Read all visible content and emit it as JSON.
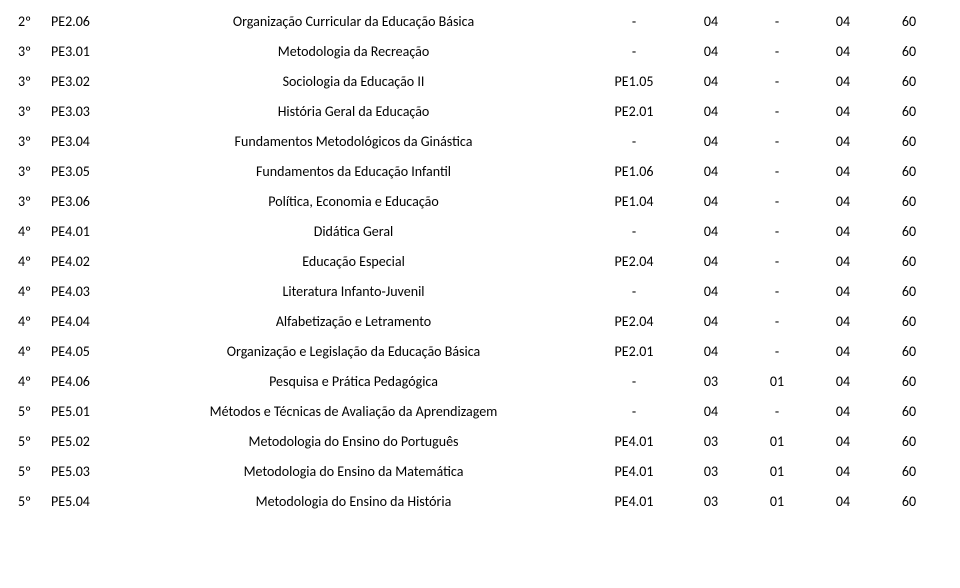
{
  "rows": [
    {
      "sem": "2º",
      "code": "PE2.06",
      "name": "Organização Curricular da Educação Básica",
      "pre": "-",
      "c1": "04",
      "c2": "-",
      "c3": "04",
      "c4": "60"
    },
    {
      "sem": "3º",
      "code": "PE3.01",
      "name": "Metodologia da Recreação",
      "pre": "-",
      "c1": "04",
      "c2": "-",
      "c3": "04",
      "c4": "60"
    },
    {
      "sem": "3º",
      "code": "PE3.02",
      "name": "Sociologia da Educação II",
      "pre": "PE1.05",
      "c1": "04",
      "c2": "-",
      "c3": "04",
      "c4": "60"
    },
    {
      "sem": "3º",
      "code": "PE3.03",
      "name": "História Geral da Educação",
      "pre": "PE2.01",
      "c1": "04",
      "c2": "-",
      "c3": "04",
      "c4": "60"
    },
    {
      "sem": "3º",
      "code": "PE3.04",
      "name": "Fundamentos Metodológicos da Ginástica",
      "pre": "-",
      "c1": "04",
      "c2": "-",
      "c3": "04",
      "c4": "60"
    },
    {
      "sem": "3º",
      "code": "PE3.05",
      "name": "Fundamentos da Educação Infantil",
      "pre": "PE1.06",
      "c1": "04",
      "c2": "-",
      "c3": "04",
      "c4": "60"
    },
    {
      "sem": "3º",
      "code": "PE3.06",
      "name": "Política, Economia e Educação",
      "pre": "PE1.04",
      "c1": "04",
      "c2": "-",
      "c3": "04",
      "c4": "60"
    },
    {
      "sem": "4º",
      "code": "PE4.01",
      "name": "Didática Geral",
      "pre": "-",
      "c1": "04",
      "c2": "-",
      "c3": "04",
      "c4": "60"
    },
    {
      "sem": "4º",
      "code": "PE4.02",
      "name": "Educação Especial",
      "pre": "PE2.04",
      "c1": "04",
      "c2": "-",
      "c3": "04",
      "c4": "60"
    },
    {
      "sem": "4º",
      "code": "PE4.03",
      "name": "Literatura Infanto-Juvenil",
      "pre": "-",
      "c1": "04",
      "c2": "-",
      "c3": "04",
      "c4": "60"
    },
    {
      "sem": "4º",
      "code": "PE4.04",
      "name": "Alfabetização e Letramento",
      "pre": "PE2.04",
      "c1": "04",
      "c2": "-",
      "c3": "04",
      "c4": "60"
    },
    {
      "sem": "4º",
      "code": "PE4.05",
      "name": "Organização e Legislação da Educação Básica",
      "pre": "PE2.01",
      "c1": "04",
      "c2": "-",
      "c3": "04",
      "c4": "60"
    },
    {
      "sem": "4º",
      "code": "PE4.06",
      "name": "Pesquisa e Prática Pedagógica",
      "pre": "-",
      "c1": "03",
      "c2": "01",
      "c3": "04",
      "c4": "60"
    },
    {
      "sem": "5º",
      "code": "PE5.01",
      "name": "Métodos e Técnicas de Avaliação da Aprendizagem",
      "pre": "-",
      "c1": "04",
      "c2": "-",
      "c3": "04",
      "c4": "60"
    },
    {
      "sem": "5º",
      "code": "PE5.02",
      "name": "Metodologia do Ensino do Português",
      "pre": "PE4.01",
      "c1": "03",
      "c2": "01",
      "c3": "04",
      "c4": "60"
    },
    {
      "sem": "5º",
      "code": "PE5.03",
      "name": "Metodologia do Ensino da Matemática",
      "pre": "PE4.01",
      "c1": "03",
      "c2": "01",
      "c3": "04",
      "c4": "60"
    },
    {
      "sem": "5º",
      "code": "PE5.04",
      "name": "Metodologia do Ensino da História",
      "pre": "PE4.01",
      "c1": "03",
      "c2": "01",
      "c3": "04",
      "c4": "60"
    }
  ]
}
